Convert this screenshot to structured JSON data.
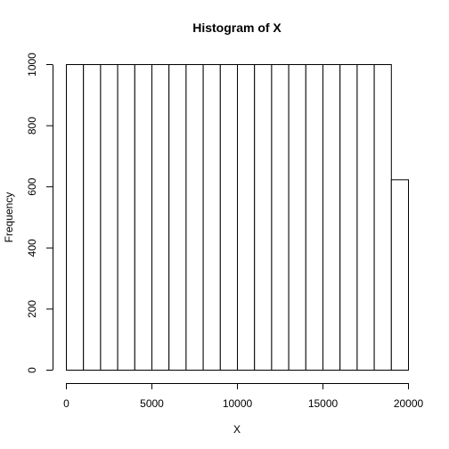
{
  "chart_data": {
    "type": "bar",
    "title": "Histogram of X",
    "xlabel": "X",
    "ylabel": "Frequency",
    "bin_width": 1000,
    "bins": [
      {
        "x0": 0,
        "x1": 1000,
        "count": 1000
      },
      {
        "x0": 1000,
        "x1": 2000,
        "count": 1000
      },
      {
        "x0": 2000,
        "x1": 3000,
        "count": 1000
      },
      {
        "x0": 3000,
        "x1": 4000,
        "count": 1000
      },
      {
        "x0": 4000,
        "x1": 5000,
        "count": 1000
      },
      {
        "x0": 5000,
        "x1": 6000,
        "count": 1000
      },
      {
        "x0": 6000,
        "x1": 7000,
        "count": 1000
      },
      {
        "x0": 7000,
        "x1": 8000,
        "count": 1000
      },
      {
        "x0": 8000,
        "x1": 9000,
        "count": 1000
      },
      {
        "x0": 9000,
        "x1": 10000,
        "count": 1000
      },
      {
        "x0": 10000,
        "x1": 11000,
        "count": 1000
      },
      {
        "x0": 11000,
        "x1": 12000,
        "count": 1000
      },
      {
        "x0": 12000,
        "x1": 13000,
        "count": 1000
      },
      {
        "x0": 13000,
        "x1": 14000,
        "count": 1000
      },
      {
        "x0": 14000,
        "x1": 15000,
        "count": 1000
      },
      {
        "x0": 15000,
        "x1": 16000,
        "count": 1000
      },
      {
        "x0": 16000,
        "x1": 17000,
        "count": 1000
      },
      {
        "x0": 17000,
        "x1": 18000,
        "count": 1000
      },
      {
        "x0": 18000,
        "x1": 19000,
        "count": 1000
      },
      {
        "x0": 19000,
        "x1": 20000,
        "count": 623
      }
    ],
    "xlim": [
      0,
      20000
    ],
    "ylim": [
      0,
      1000
    ],
    "xticks": [
      0,
      5000,
      10000,
      15000,
      20000
    ],
    "yticks": [
      0,
      200,
      400,
      600,
      800,
      1000
    ],
    "grid": false,
    "legend": "none"
  }
}
